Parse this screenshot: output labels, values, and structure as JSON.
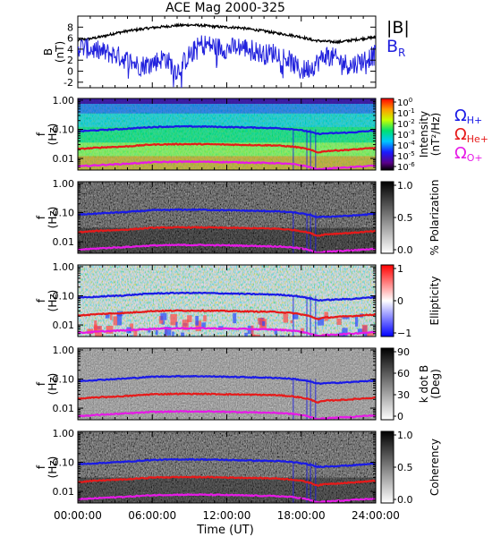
{
  "chart_data": {
    "title": "ACE Mag 2000-325",
    "type": "line+heatmap",
    "x_axis": {
      "label": "Time (UT)",
      "ticks": [
        "00:00:00",
        "06:00:00",
        "12:00:00",
        "18:00:00",
        "24:00:00"
      ],
      "range_hours": [
        0,
        24
      ]
    },
    "top_panel": {
      "ylabel": "B\n(nT)",
      "ylabel_lines": [
        "B",
        "(nT)"
      ],
      "ylim": [
        -3,
        10
      ],
      "yticks": [
        "-2",
        "0",
        "2",
        "4",
        "6",
        "8"
      ],
      "legend": [
        {
          "name": "|B|",
          "color": "#000000"
        },
        {
          "name": "B",
          "sub": "R",
          "color": "#2222dd"
        }
      ],
      "series": [
        {
          "name": "|B|",
          "color": "#000000",
          "x": [
            0,
            1,
            2,
            3,
            4,
            5,
            6,
            7,
            8,
            9,
            10,
            11,
            12,
            13,
            14,
            15,
            16,
            17,
            18,
            19,
            20,
            21,
            22,
            23,
            24
          ],
          "y": [
            5.6,
            5.9,
            6.3,
            6.9,
            7.3,
            7.6,
            7.9,
            8.1,
            8.3,
            8.4,
            8.3,
            8.1,
            8.0,
            7.9,
            7.6,
            7.3,
            6.9,
            6.6,
            6.2,
            5.6,
            5.4,
            5.3,
            5.6,
            5.9,
            6.2
          ]
        },
        {
          "name": "B_R",
          "color": "#2222dd",
          "x": [
            0,
            1,
            2,
            3,
            4,
            5,
            6,
            7,
            8,
            9,
            10,
            11,
            12,
            13,
            14,
            15,
            16,
            17,
            18,
            19,
            20,
            21,
            22,
            23,
            24
          ],
          "y": [
            4.5,
            4.0,
            3.5,
            3.0,
            2.0,
            1.0,
            1.5,
            2.5,
            0.0,
            3.0,
            5.0,
            4.5,
            4.0,
            4.5,
            4.0,
            3.0,
            3.5,
            2.0,
            0.0,
            1.0,
            3.0,
            2.0,
            1.0,
            2.0,
            3.0
          ]
        }
      ]
    },
    "freq_axis": {
      "ylabel_lines": [
        "f",
        "(Hz)"
      ],
      "scale": "log",
      "ylim": [
        0.004,
        1.15
      ],
      "yticks": [
        {
          "value": 1.0,
          "label": "1.00"
        },
        {
          "value": 0.1,
          "label": "0.10"
        },
        {
          "value": 0.01,
          "label": "0.01"
        }
      ]
    },
    "gyrofrequency_lines": {
      "x": [
        0,
        2,
        4,
        6,
        8,
        10,
        12,
        14,
        16,
        17.5,
        18.5,
        19.3,
        20,
        22,
        24
      ],
      "series": [
        {
          "name": "Ω_H+",
          "color": "#1a1ae6",
          "y": [
            0.085,
            0.095,
            0.105,
            0.12,
            0.125,
            0.125,
            0.12,
            0.115,
            0.11,
            0.1,
            0.085,
            0.07,
            0.072,
            0.078,
            0.09
          ]
        },
        {
          "name": "Ω_He+",
          "color": "#e61a1a",
          "y": [
            0.021,
            0.024,
            0.026,
            0.03,
            0.031,
            0.031,
            0.03,
            0.029,
            0.028,
            0.025,
            0.021,
            0.016,
            0.018,
            0.02,
            0.023
          ]
        },
        {
          "name": "Ω_O+",
          "color": "#e61ae6",
          "y": [
            0.0053,
            0.006,
            0.0066,
            0.0074,
            0.0077,
            0.0077,
            0.0075,
            0.0072,
            0.0069,
            0.0063,
            0.0053,
            0.0042,
            0.0045,
            0.005,
            0.0057
          ]
        }
      ]
    },
    "panels": [
      {
        "name": "intensity",
        "colorbar": "spectral",
        "cbar_labels": [
          "Intensity",
          "(nT²/Hz)"
        ],
        "cbar_ticks": [
          {
            "base": "10",
            "exp": "0"
          },
          {
            "base": "10",
            "exp": "-1"
          },
          {
            "base": "10",
            "exp": "-2"
          },
          {
            "base": "10",
            "exp": "-3"
          },
          {
            "base": "10",
            "exp": "-4"
          },
          {
            "base": "10",
            "exp": "-5"
          },
          {
            "base": "10",
            "exp": "-6"
          }
        ]
      },
      {
        "name": "polarization",
        "colorbar": "gray",
        "cbar_labels": [
          "% Polarization"
        ],
        "cbar_ticks": [
          "1.0",
          "0.5",
          "0.0"
        ]
      },
      {
        "name": "ellipticity",
        "colorbar": "bwr",
        "cbar_labels": [
          "Ellipticity"
        ],
        "cbar_ticks": [
          "1",
          "0",
          "−1"
        ]
      },
      {
        "name": "kdotb",
        "colorbar": "gray",
        "cbar_labels": [
          "k dot B",
          "(Deg)"
        ],
        "cbar_ticks": [
          "90",
          "60",
          "30",
          "0"
        ]
      },
      {
        "name": "coherency",
        "colorbar": "gray",
        "cbar_labels": [
          "Coherency"
        ],
        "cbar_ticks": [
          "1.0",
          "0.5",
          "0.0"
        ]
      }
    ],
    "ion_legend": [
      {
        "base": "Ω",
        "sub": "H+",
        "color": "#1a1ae6"
      },
      {
        "base": "Ω",
        "sub": "He+",
        "color": "#e61a1a"
      },
      {
        "base": "Ω",
        "sub": "O+",
        "color": "#e61ae6"
      }
    ]
  }
}
